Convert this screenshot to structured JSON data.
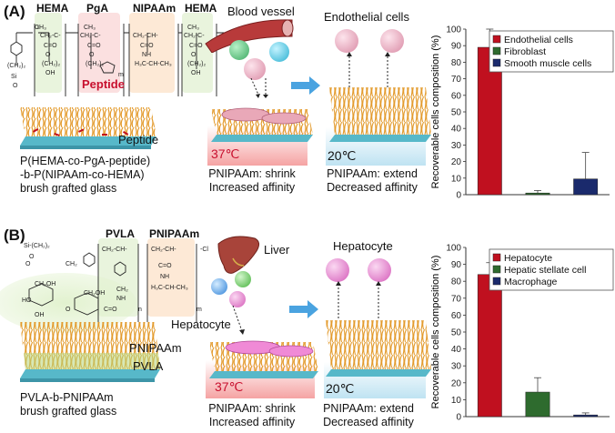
{
  "panel_a": {
    "label": "(A)",
    "monomers": [
      "HEMA",
      "PgA",
      "NIPAAm",
      "HEMA"
    ],
    "peptide_label": "Peptide",
    "peptide_label_2": "Peptide",
    "polymer_caption": [
      "P(HEMA-co-PgA-peptide)",
      "-b-P(NIPAAm-co-HEMA)",
      "brush grafted glass"
    ],
    "blood_vessel": "Blood vessel",
    "endothelial_cells": "Endothelial cells",
    "temp_hot": "37℃",
    "temp_cold": "20℃",
    "caption_shrink": [
      "PNIPAAm: shrink",
      "Increased affinity"
    ],
    "caption_extend": [
      "PNIPAAm: extend",
      "Decreased affinity"
    ]
  },
  "panel_b": {
    "label": "(B)",
    "monomers": [
      "PVLA",
      "PNIPAAm"
    ],
    "liver": "Liver",
    "hepatocyte_top": "Hepatocyte",
    "hepatocyte_left": "Hepatocyte",
    "layer_pnipaam": "PNIPAAm",
    "layer_pvla": "PVLA",
    "polymer_caption": [
      "PVLA-b-PNIPAAm",
      "brush grafted glass"
    ],
    "temp_hot": "37℃",
    "temp_cold": "20℃",
    "caption_shrink": [
      "PNIPAAm: shrink",
      "Increased affinity"
    ],
    "caption_extend": [
      "PNIPAAm: extend",
      "Decreased affinity"
    ]
  },
  "colors": {
    "series1": "#c0101f",
    "series2": "#2e6b2e",
    "series3": "#1a2a6c",
    "orange_brush": "#e8a23a",
    "glass": "#57b8c9",
    "warm": "#f4a7a7",
    "cool": "#bfe3f2",
    "arrow_blue": "#4aa3e0"
  },
  "chart_data": [
    {
      "type": "bar",
      "ylabel": "Recoverable cells composition (%)",
      "ylim": [
        0,
        100
      ],
      "yticks": [
        0,
        10,
        20,
        30,
        40,
        50,
        60,
        70,
        80,
        90,
        100
      ],
      "series": [
        {
          "name": "Endothelial cells",
          "value": 89,
          "error": 15
        },
        {
          "name": "Fibroblast",
          "value": 1,
          "error": 1.5
        },
        {
          "name": "Smooth muscle cells",
          "value": 9.5,
          "error": 16
        }
      ],
      "legend_position": "top-right"
    },
    {
      "type": "bar",
      "ylabel": "Recoverable cells composition (%)",
      "ylim": [
        0,
        100
      ],
      "yticks": [
        0,
        10,
        20,
        30,
        40,
        50,
        60,
        70,
        80,
        90,
        100
      ],
      "series": [
        {
          "name": "Hepatocyte",
          "value": 84,
          "error": 7
        },
        {
          "name": "Hepatic stellate cell",
          "value": 14.5,
          "error": 8.5
        },
        {
          "name": "Macrophage",
          "value": 1,
          "error": 1.2
        }
      ],
      "legend_position": "top-right"
    }
  ]
}
